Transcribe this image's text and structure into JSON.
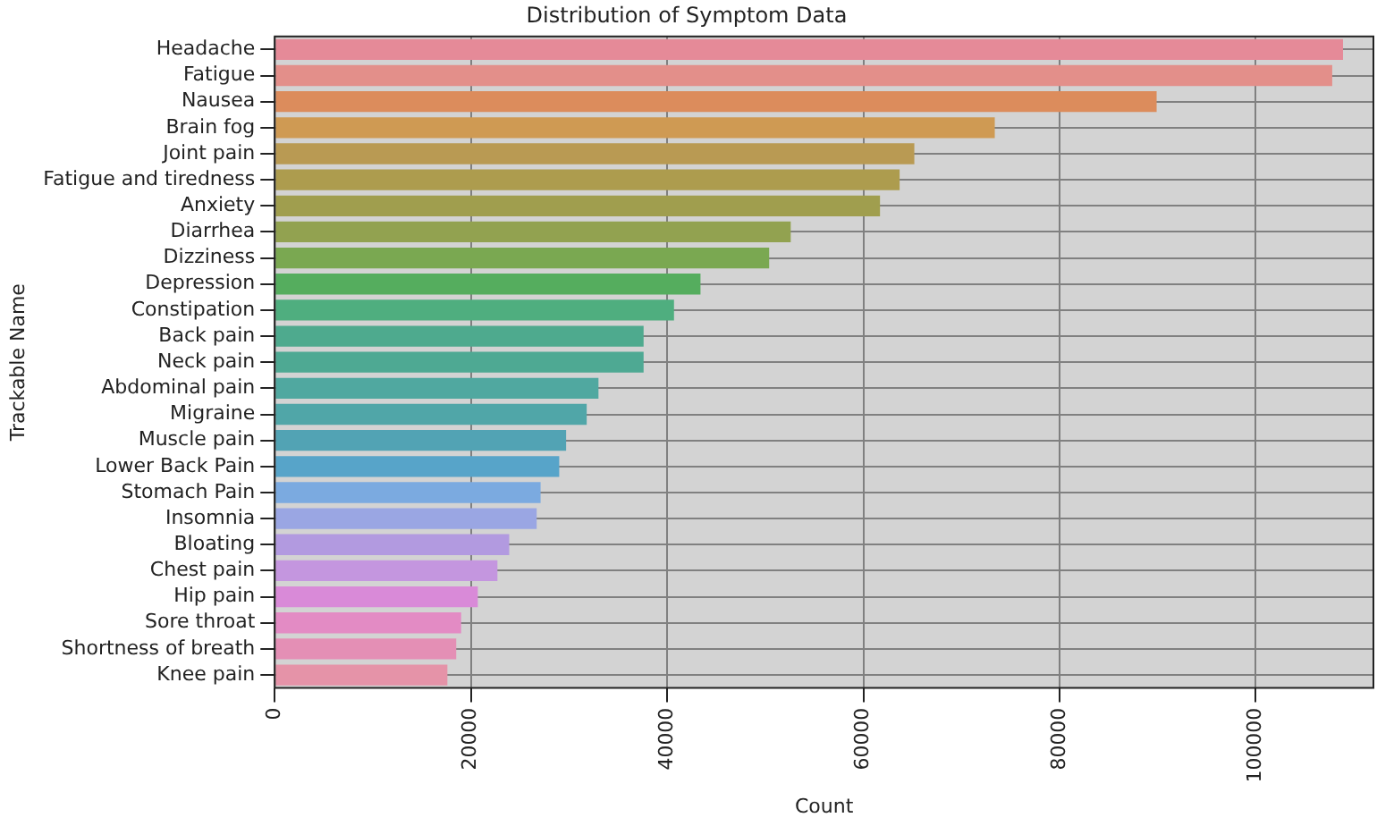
{
  "chart_data": {
    "type": "bar",
    "orientation": "horizontal",
    "title": "Distribution of Symptom Data",
    "xlabel": "Count",
    "ylabel": "Trackable Name",
    "categories": [
      "Headache",
      "Fatigue",
      "Nausea",
      "Brain fog",
      "Joint pain",
      "Fatigue and tiredness",
      "Anxiety",
      "Diarrhea",
      "Dizziness",
      "Depression",
      "Constipation",
      "Back pain",
      "Neck pain",
      "Abdominal pain",
      "Migraine",
      "Muscle pain",
      "Lower Back Pain",
      "Stomach Pain",
      "Insomnia",
      "Bloating",
      "Chest pain",
      "Hip pain",
      "Sore throat",
      "Shortness of breath",
      "Knee pain"
    ],
    "values": [
      108900,
      107800,
      89900,
      73400,
      65200,
      63700,
      61700,
      52600,
      50400,
      43400,
      40700,
      37600,
      37600,
      33000,
      31800,
      29700,
      29000,
      27100,
      26700,
      23900,
      22700,
      20700,
      19000,
      18500,
      17600
    ],
    "colors": [
      "#e58a98",
      "#e38f8a",
      "#dc8c5c",
      "#cf9a53",
      "#b99a53",
      "#ad9c4e",
      "#a09e4e",
      "#92a250",
      "#7aa851",
      "#55ad5e",
      "#4fae7f",
      "#4eaa8e",
      "#4ea993",
      "#50a8a0",
      "#50a6a8",
      "#52a3b4",
      "#57a4c9",
      "#7baae0",
      "#9aa6e3",
      "#b29ae0",
      "#c496df",
      "#d98ad8",
      "#e38bc4",
      "#e48fb5",
      "#e593a8"
    ],
    "xlim": [
      0,
      112000
    ],
    "xticks": [
      0,
      20000,
      40000,
      60000,
      80000,
      100000
    ],
    "grid": true,
    "legend": false
  }
}
